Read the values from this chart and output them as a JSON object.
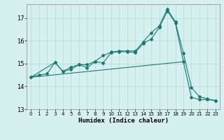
{
  "xlabel": "Humidex (Indice chaleur)",
  "ylabel": "",
  "background_color": "#d6f0f0",
  "grid_color": "#b8dede",
  "line_color": "#1a7a6e",
  "xlim": [
    -0.5,
    23.5
  ],
  "ylim": [
    13,
    17.6
  ],
  "yticks": [
    13,
    14,
    15,
    16,
    17
  ],
  "xticks": [
    0,
    1,
    2,
    3,
    4,
    5,
    6,
    7,
    8,
    9,
    10,
    11,
    12,
    13,
    14,
    15,
    16,
    17,
    18,
    19,
    20,
    21,
    22,
    23
  ],
  "line1_x": [
    0,
    1,
    2,
    3,
    4,
    5,
    6,
    7,
    8,
    9,
    10,
    11,
    12,
    13,
    14,
    15,
    16,
    17,
    18,
    19,
    20,
    21,
    22,
    23
  ],
  "line1_y": [
    14.4,
    14.5,
    14.55,
    15.05,
    14.65,
    14.85,
    14.95,
    14.82,
    15.08,
    15.03,
    15.48,
    15.52,
    15.52,
    15.48,
    15.88,
    16.08,
    16.58,
    17.3,
    16.78,
    15.08,
    13.52,
    13.42,
    13.42,
    13.38
  ],
  "line2_x": [
    0,
    3,
    4,
    5,
    6,
    7,
    8,
    9,
    10,
    11,
    12,
    13,
    14,
    15,
    16,
    17,
    18,
    19,
    20,
    21,
    22,
    23
  ],
  "line2_y": [
    14.4,
    15.05,
    14.65,
    14.75,
    14.95,
    14.95,
    15.1,
    15.35,
    15.5,
    15.55,
    15.55,
    15.55,
    15.95,
    16.35,
    16.65,
    17.4,
    16.82,
    15.45,
    13.95,
    13.55,
    13.45,
    13.38
  ],
  "line3_x": [
    0,
    19
  ],
  "line3_y": [
    14.4,
    15.08
  ]
}
